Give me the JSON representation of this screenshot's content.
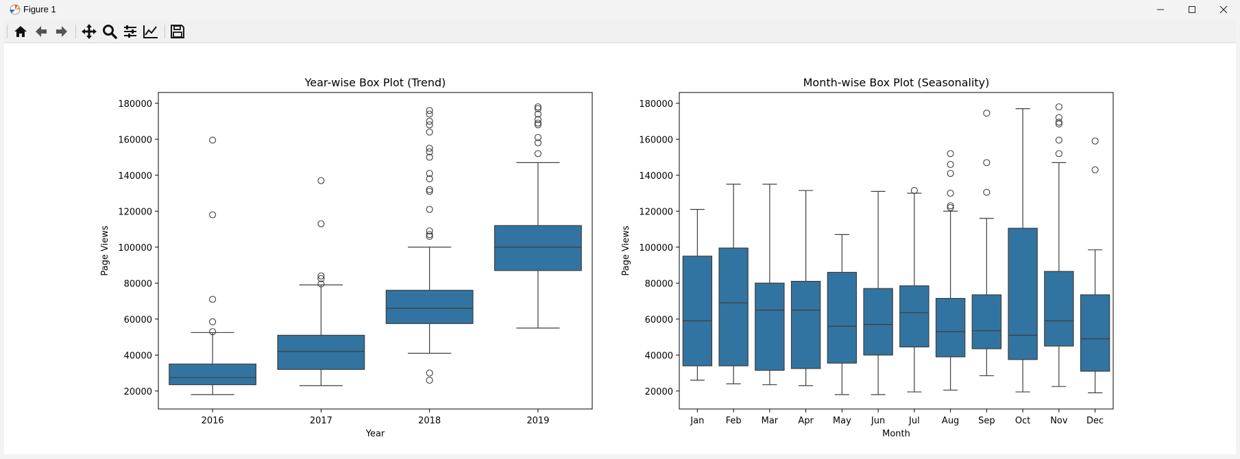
{
  "window": {
    "title": "Figure 1",
    "app_icon": "matplotlib-icon",
    "controls": [
      "minimize-icon",
      "maximize-icon",
      "close-icon"
    ]
  },
  "toolbar": {
    "items": [
      "home-icon",
      "back-icon",
      "forward-icon",
      "pan-icon",
      "zoom-icon",
      "configure-subplots-icon",
      "edit-axis-icon",
      "save-icon"
    ]
  },
  "colors": {
    "box_fill": "#3274a1",
    "line": "#3d3d3d"
  },
  "chart_data": [
    {
      "type": "box",
      "title": "Year-wise Box Plot (Trend)",
      "xlabel": "Year",
      "ylabel": "Page Views",
      "ylim": [
        10000,
        186000
      ],
      "yticks": [
        20000,
        40000,
        60000,
        80000,
        100000,
        120000,
        140000,
        160000,
        180000
      ],
      "categories": [
        "2016",
        "2017",
        "2018",
        "2019"
      ],
      "boxes": [
        {
          "whislo": 18000,
          "q1": 23500,
          "med": 27500,
          "q3": 35000,
          "whishi": 52500,
          "fliers": [
            53000,
            58500,
            71000,
            118000,
            159500
          ]
        },
        {
          "whislo": 23000,
          "q1": 32000,
          "med": 42000,
          "q3": 51000,
          "whishi": 79000,
          "fliers": [
            79500,
            82500,
            84000,
            113000,
            137000
          ]
        },
        {
          "whislo": 41000,
          "q1": 57500,
          "med": 66000,
          "q3": 76000,
          "whishi": 100000,
          "fliers": [
            26000,
            30000,
            106000,
            107000,
            109000,
            121000,
            131000,
            132000,
            138000,
            141000,
            150000,
            153000,
            155000,
            164000,
            168000,
            170000,
            174000,
            176000
          ]
        },
        {
          "whislo": 55000,
          "q1": 87000,
          "med": 100000,
          "q3": 112000,
          "whishi": 147000,
          "fliers": [
            152000,
            158000,
            161000,
            168000,
            169000,
            171000,
            174000,
            177000,
            178000
          ]
        }
      ]
    },
    {
      "type": "box",
      "title": "Month-wise Box Plot (Seasonality)",
      "xlabel": "Month",
      "ylabel": "Page Views",
      "ylim": [
        10000,
        186000
      ],
      "yticks": [
        20000,
        40000,
        60000,
        80000,
        100000,
        120000,
        140000,
        160000,
        180000
      ],
      "categories": [
        "Jan",
        "Feb",
        "Mar",
        "Apr",
        "May",
        "Jun",
        "Jul",
        "Aug",
        "Sep",
        "Oct",
        "Nov",
        "Dec"
      ],
      "boxes": [
        {
          "whislo": 26000,
          "q1": 34000,
          "med": 59000,
          "q3": 95000,
          "whishi": 121000,
          "fliers": []
        },
        {
          "whislo": 24000,
          "q1": 34000,
          "med": 69000,
          "q3": 99500,
          "whishi": 135000,
          "fliers": []
        },
        {
          "whislo": 23500,
          "q1": 31500,
          "med": 65000,
          "q3": 80000,
          "whishi": 135000,
          "fliers": []
        },
        {
          "whislo": 23000,
          "q1": 32500,
          "med": 65000,
          "q3": 81000,
          "whishi": 131500,
          "fliers": []
        },
        {
          "whislo": 18000,
          "q1": 35500,
          "med": 56000,
          "q3": 86000,
          "whishi": 107000,
          "fliers": []
        },
        {
          "whislo": 18000,
          "q1": 40000,
          "med": 57000,
          "q3": 77000,
          "whishi": 131000,
          "fliers": []
        },
        {
          "whislo": 19500,
          "q1": 44500,
          "med": 63500,
          "q3": 78500,
          "whishi": 130000,
          "fliers": [
            131500
          ]
        },
        {
          "whislo": 20500,
          "q1": 39000,
          "med": 53000,
          "q3": 71500,
          "whishi": 120000,
          "fliers": [
            122000,
            123000,
            130000,
            141000,
            146000,
            152000
          ]
        },
        {
          "whislo": 28500,
          "q1": 43500,
          "med": 53500,
          "q3": 73500,
          "whishi": 116000,
          "fliers": [
            130500,
            147000,
            174500
          ]
        },
        {
          "whislo": 19500,
          "q1": 37500,
          "med": 51000,
          "q3": 110500,
          "whishi": 177000,
          "fliers": []
        },
        {
          "whislo": 22500,
          "q1": 45000,
          "med": 59000,
          "q3": 86500,
          "whishi": 147000,
          "fliers": [
            152000,
            159500,
            168500,
            169500,
            172000,
            178000
          ]
        },
        {
          "whislo": 19000,
          "q1": 31000,
          "med": 49000,
          "q3": 73500,
          "whishi": 98500,
          "fliers": [
            143000,
            159000
          ]
        }
      ]
    }
  ]
}
